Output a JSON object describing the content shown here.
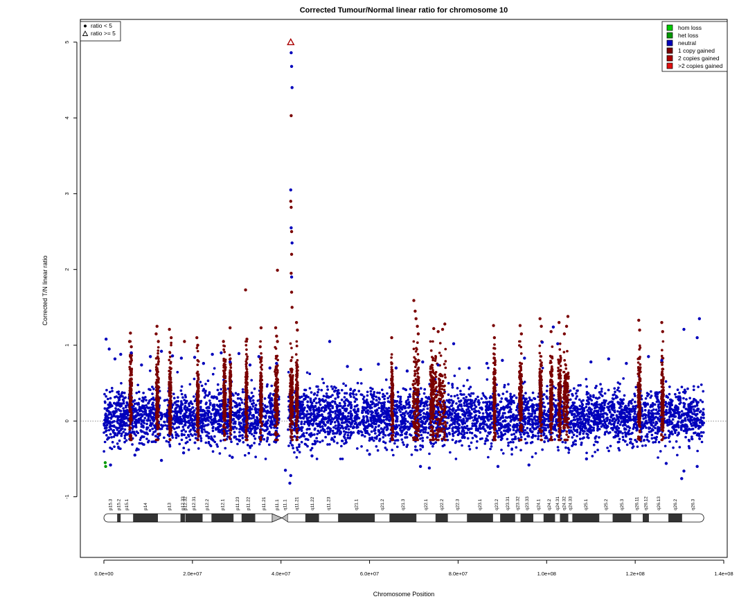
{
  "chart_data": {
    "type": "scatter",
    "title": "Corrected Tumour/Normal linear ratio for chromosome  10",
    "xlabel": "Chromosome Position",
    "ylabel": "Corrected T/N linear ratio",
    "xlim": [
      0,
      140000000
    ],
    "ylim": [
      -1.8,
      5.3
    ],
    "x_ticks": [
      {
        "value": 0,
        "label": "0.0e+00"
      },
      {
        "value": 20000000,
        "label": "2.0e+07"
      },
      {
        "value": 40000000,
        "label": "4.0e+07"
      },
      {
        "value": 60000000,
        "label": "6.0e+07"
      },
      {
        "value": 80000000,
        "label": "8.0e+07"
      },
      {
        "value": 100000000,
        "label": "1.0e+08"
      },
      {
        "value": 120000000,
        "label": "1.2e+08"
      },
      {
        "value": 140000000,
        "label": "1.4e+08"
      }
    ],
    "y_ticks": [
      {
        "value": -1,
        "label": "-1"
      },
      {
        "value": 0,
        "label": "0"
      },
      {
        "value": 1,
        "label": "1"
      },
      {
        "value": 2,
        "label": "2"
      },
      {
        "value": 3,
        "label": "3"
      },
      {
        "value": 4,
        "label": "4"
      },
      {
        "value": 5,
        "label": "5"
      }
    ],
    "reference_line": {
      "y": 0,
      "style": "dotted"
    },
    "shape_legend": {
      "position": "top-left",
      "entries": [
        {
          "label": "ratio < 5",
          "shape": "filled-circle"
        },
        {
          "label": "ratio >= 5",
          "shape": "open-triangle"
        }
      ]
    },
    "color_legend": {
      "position": "top-right",
      "entries": [
        {
          "label": "hom loss",
          "color": "#00cc00"
        },
        {
          "label": "het loss",
          "color": "#009900"
        },
        {
          "label": "neutral",
          "color": "#0000bb"
        },
        {
          "label": "1 copy gained",
          "color": "#7a0000"
        },
        {
          "label": "2 copies gained",
          "color": "#aa0000"
        },
        {
          "label": ">2 copies gained",
          "color": "#e01010"
        }
      ]
    },
    "series": [
      {
        "name": "neutral",
        "color": "#0000bb",
        "points": [
          [
            500000,
            1.08
          ],
          [
            1200000,
            0.95
          ],
          [
            2500000,
            0.82
          ],
          [
            3800000,
            0.88
          ],
          [
            6200000,
            0.9
          ],
          [
            8500000,
            0.74
          ],
          [
            10500000,
            0.85
          ],
          [
            13000000,
            0.92
          ],
          [
            15500000,
            0.86
          ],
          [
            17500000,
            0.83
          ],
          [
            20500000,
            0.84
          ],
          [
            22500000,
            0.76
          ],
          [
            24500000,
            0.88
          ],
          [
            26500000,
            0.9
          ],
          [
            28500000,
            0.78
          ],
          [
            30500000,
            0.89
          ],
          [
            33000000,
            0.74
          ],
          [
            35000000,
            0.85
          ],
          [
            37500000,
            0.7
          ],
          [
            39000000,
            0.76
          ],
          [
            42300000,
            4.86
          ],
          [
            42400000,
            4.68
          ],
          [
            42500000,
            4.4
          ],
          [
            42200000,
            3.05
          ],
          [
            42300000,
            2.55
          ],
          [
            42500000,
            2.35
          ],
          [
            42400000,
            1.9
          ],
          [
            51000000,
            1.05
          ],
          [
            55000000,
            0.72
          ],
          [
            58000000,
            0.68
          ],
          [
            62000000,
            0.75
          ],
          [
            66000000,
            0.7
          ],
          [
            68500000,
            0.66
          ],
          [
            72000000,
            0.78
          ],
          [
            75500000,
            0.74
          ],
          [
            79000000,
            1.02
          ],
          [
            82500000,
            0.7
          ],
          [
            86500000,
            0.76
          ],
          [
            90000000,
            0.8
          ],
          [
            95000000,
            0.83
          ],
          [
            99000000,
            1.04
          ],
          [
            101500000,
            1.24
          ],
          [
            102500000,
            1.02
          ],
          [
            110000000,
            0.78
          ],
          [
            114000000,
            0.82
          ],
          [
            118000000,
            0.76
          ],
          [
            123000000,
            0.85
          ],
          [
            126000000,
            0.8
          ],
          [
            131000000,
            1.21
          ],
          [
            134500000,
            1.35
          ],
          [
            134000000,
            1.1
          ],
          [
            13000000,
            -0.52
          ],
          [
            29000000,
            -0.48
          ],
          [
            41000000,
            -0.65
          ],
          [
            42000000,
            -0.82
          ],
          [
            42200000,
            -0.72
          ],
          [
            71500000,
            -0.6
          ],
          [
            73500000,
            -0.62
          ],
          [
            89000000,
            -0.6
          ],
          [
            96000000,
            -0.58
          ],
          [
            109000000,
            -0.5
          ],
          [
            127000000,
            -0.56
          ],
          [
            130500000,
            -0.76
          ],
          [
            131000000,
            -0.66
          ],
          [
            134000000,
            -0.6
          ],
          [
            1500000,
            -0.58
          ],
          [
            7000000,
            -0.45
          ],
          [
            18000000,
            -0.42
          ],
          [
            47000000,
            -0.46
          ],
          [
            60000000,
            -0.44
          ]
        ]
      },
      {
        "name": "1 copy gained",
        "color": "#7a0000",
        "points": [
          [
            6000000,
            1.16
          ],
          [
            5800000,
            1.05
          ],
          [
            6200000,
            0.98
          ],
          [
            12000000,
            1.25
          ],
          [
            11800000,
            1.15
          ],
          [
            12300000,
            1.05
          ],
          [
            14800000,
            1.21
          ],
          [
            15200000,
            1.1
          ],
          [
            18200000,
            1.05
          ],
          [
            21000000,
            1.1
          ],
          [
            21200000,
            1.0
          ],
          [
            27000000,
            1.05
          ],
          [
            28500000,
            1.23
          ],
          [
            32000000,
            1.73
          ],
          [
            32300000,
            1.08
          ],
          [
            35500000,
            1.23
          ],
          [
            35300000,
            0.98
          ],
          [
            38800000,
            1.23
          ],
          [
            39000000,
            1.12
          ],
          [
            39200000,
            1.05
          ],
          [
            39200000,
            1.99
          ],
          [
            42300000,
            4.03
          ],
          [
            42200000,
            2.9
          ],
          [
            42300000,
            2.82
          ],
          [
            42400000,
            2.5
          ],
          [
            42400000,
            2.2
          ],
          [
            42300000,
            1.95
          ],
          [
            42400000,
            1.7
          ],
          [
            42500000,
            1.5
          ],
          [
            43500000,
            1.3
          ],
          [
            43700000,
            1.2
          ],
          [
            65000000,
            1.1
          ],
          [
            70000000,
            1.59
          ],
          [
            70300000,
            1.45
          ],
          [
            70500000,
            1.35
          ],
          [
            70800000,
            1.25
          ],
          [
            71000000,
            1.15
          ],
          [
            74500000,
            1.22
          ],
          [
            75500000,
            1.18
          ],
          [
            76500000,
            1.21
          ],
          [
            77000000,
            1.28
          ],
          [
            88000000,
            1.26
          ],
          [
            88200000,
            1.1
          ],
          [
            94000000,
            1.26
          ],
          [
            94300000,
            1.15
          ],
          [
            98500000,
            1.35
          ],
          [
            98800000,
            1.25
          ],
          [
            101000000,
            1.18
          ],
          [
            102800000,
            1.3
          ],
          [
            104800000,
            1.38
          ],
          [
            104500000,
            1.25
          ],
          [
            104000000,
            1.15
          ],
          [
            120800000,
            1.33
          ],
          [
            121000000,
            1.2
          ],
          [
            126000000,
            1.3
          ],
          [
            126200000,
            1.18
          ]
        ]
      },
      {
        "name": "het loss",
        "color": "#009900",
        "points": [
          [
            300000,
            -0.55
          ],
          [
            400000,
            -0.6
          ]
        ]
      },
      {
        "name": "2 copies gained",
        "color": "#aa0000",
        "points": [
          [
            42200000,
            5.0
          ]
        ],
        "shape": "open-triangle"
      }
    ],
    "ideogram": {
      "centromere_position": 40000000,
      "bands": [
        {
          "name": "p15.3",
          "start": 0,
          "end": 3000000,
          "stain": "gneg"
        },
        {
          "name": "p15.2",
          "start": 3000000,
          "end": 3800000,
          "stain": "gpos"
        },
        {
          "name": "p15.1",
          "start": 3800000,
          "end": 6600000,
          "stain": "gneg"
        },
        {
          "name": "p14",
          "start": 6600000,
          "end": 12200000,
          "stain": "gpos"
        },
        {
          "name": "p13",
          "start": 12200000,
          "end": 17300000,
          "stain": "gneg"
        },
        {
          "name": "p12.33",
          "start": 17300000,
          "end": 18300000,
          "stain": "gpos"
        },
        {
          "name": "p12.32",
          "start": 18300000,
          "end": 18400000,
          "stain": "gneg"
        },
        {
          "name": "p12.31",
          "start": 18400000,
          "end": 22300000,
          "stain": "gpos"
        },
        {
          "name": "p12.2",
          "start": 22300000,
          "end": 24300000,
          "stain": "gneg"
        },
        {
          "name": "p12.1",
          "start": 24300000,
          "end": 29300000,
          "stain": "gpos"
        },
        {
          "name": "p11.23",
          "start": 29300000,
          "end": 31100000,
          "stain": "gneg"
        },
        {
          "name": "p11.22",
          "start": 31100000,
          "end": 34200000,
          "stain": "gpos"
        },
        {
          "name": "p11.21",
          "start": 34200000,
          "end": 38000000,
          "stain": "gneg"
        },
        {
          "name": "p11.1",
          "start": 38000000,
          "end": 40200000,
          "stain": "acen"
        },
        {
          "name": "q11.1",
          "start": 40200000,
          "end": 41600000,
          "stain": "acen"
        },
        {
          "name": "q11.21",
          "start": 41600000,
          "end": 45500000,
          "stain": "gneg"
        },
        {
          "name": "q11.22",
          "start": 45500000,
          "end": 48600000,
          "stain": "gpos"
        },
        {
          "name": "q11.23",
          "start": 48600000,
          "end": 52900000,
          "stain": "gneg"
        },
        {
          "name": "q21.1",
          "start": 52900000,
          "end": 61200000,
          "stain": "gpos"
        },
        {
          "name": "q21.2",
          "start": 61200000,
          "end": 64500000,
          "stain": "gneg"
        },
        {
          "name": "q21.3",
          "start": 64500000,
          "end": 70600000,
          "stain": "gpos"
        },
        {
          "name": "q22.1",
          "start": 70600000,
          "end": 74900000,
          "stain": "gneg"
        },
        {
          "name": "q22.2",
          "start": 74900000,
          "end": 77700000,
          "stain": "gpos"
        },
        {
          "name": "q22.3",
          "start": 77700000,
          "end": 82000000,
          "stain": "gneg"
        },
        {
          "name": "q23.1",
          "start": 82000000,
          "end": 87900000,
          "stain": "gpos"
        },
        {
          "name": "q23.2",
          "start": 87900000,
          "end": 89500000,
          "stain": "gneg"
        },
        {
          "name": "q23.31",
          "start": 89500000,
          "end": 92900000,
          "stain": "gpos"
        },
        {
          "name": "q23.32",
          "start": 92900000,
          "end": 94100000,
          "stain": "gneg"
        },
        {
          "name": "q23.33",
          "start": 94100000,
          "end": 97000000,
          "stain": "gpos"
        },
        {
          "name": "q24.1",
          "start": 97000000,
          "end": 99300000,
          "stain": "gneg"
        },
        {
          "name": "q24.2",
          "start": 99300000,
          "end": 101900000,
          "stain": "gpos"
        },
        {
          "name": "q24.31",
          "start": 101900000,
          "end": 103000000,
          "stain": "gneg"
        },
        {
          "name": "q24.32",
          "start": 103000000,
          "end": 104900000,
          "stain": "gpos"
        },
        {
          "name": "q24.33",
          "start": 104900000,
          "end": 105800000,
          "stain": "gneg"
        },
        {
          "name": "q25.1",
          "start": 105800000,
          "end": 111900000,
          "stain": "gpos"
        },
        {
          "name": "q25.2",
          "start": 111900000,
          "end": 114900000,
          "stain": "gneg"
        },
        {
          "name": "q25.3",
          "start": 114900000,
          "end": 119100000,
          "stain": "gpos"
        },
        {
          "name": "q26.11",
          "start": 119100000,
          "end": 121700000,
          "stain": "gneg"
        },
        {
          "name": "q26.12",
          "start": 121700000,
          "end": 123100000,
          "stain": "gpos"
        },
        {
          "name": "q26.13",
          "start": 123100000,
          "end": 127500000,
          "stain": "gneg"
        },
        {
          "name": "q26.2",
          "start": 127500000,
          "end": 130600000,
          "stain": "gpos"
        },
        {
          "name": "q26.3",
          "start": 130600000,
          "end": 135500000,
          "stain": "gneg"
        }
      ]
    }
  }
}
